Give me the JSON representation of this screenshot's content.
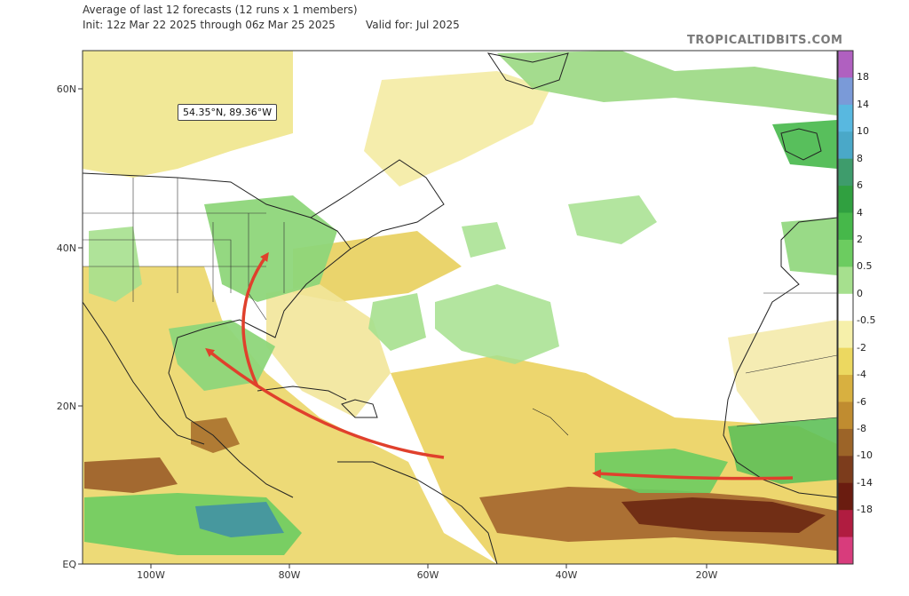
{
  "header": {
    "title": "Average of last 12 forecasts (12 runs x 1 members)",
    "init": "Init: 12z Mar 22 2025 through 06z Mar 25 2025",
    "valid": "Valid for: Jul 2025",
    "brand": "TROPICALTIDBITS.COM"
  },
  "coordinate_readout": "54.35°N, 89.36°W",
  "axes": {
    "lat_labels": [
      "60N",
      "40N",
      "20N",
      "EQ"
    ],
    "lon_labels": [
      "100W",
      "80W",
      "60W",
      "40W",
      "20W"
    ]
  },
  "colorbar": {
    "labels": [
      "18",
      "14",
      "10",
      "8",
      "6",
      "4",
      "2",
      "0.5",
      "0",
      "-0.5",
      "-2",
      "-4",
      "-6",
      "-8",
      "-10",
      "-14",
      "-18"
    ],
    "colors": [
      "#b060c0",
      "#7a9ad8",
      "#58b8e0",
      "#4aa8c8",
      "#3e9c6c",
      "#30a040",
      "#46b84a",
      "#6ccc60",
      "#a6e08e",
      "#ffffff",
      "#f6f0aa",
      "#ecd860",
      "#d8b040",
      "#c08c30",
      "#9c6428",
      "#7c3c1c",
      "#6a1c10",
      "#b01c40",
      "#d83c7c"
    ]
  },
  "colors": {
    "green": "#8ed67a",
    "yellow": "#ece27a",
    "brown": "#8a4a20",
    "arrow": "#e0402c"
  }
}
